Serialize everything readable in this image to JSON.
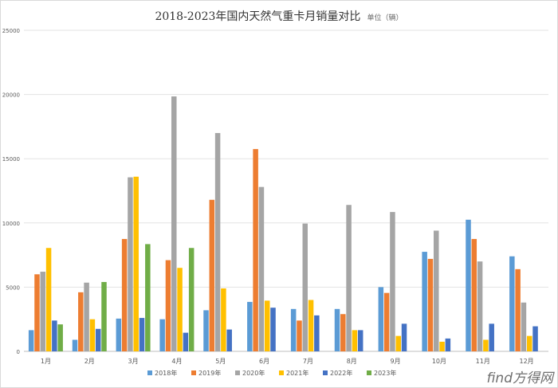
{
  "chart_data": {
    "type": "bar",
    "title": "2018-2023年国内天然气重卡月销量对比",
    "unit_note": "单位（辆）",
    "categories": [
      "1月",
      "2月",
      "3月",
      "4月",
      "5月",
      "6月",
      "7月",
      "8月",
      "9月",
      "10月",
      "11月",
      "12月"
    ],
    "series": [
      {
        "name": "2018年",
        "color": "#5b9bd5",
        "values": [
          1650,
          900,
          2550,
          2500,
          3200,
          3850,
          3300,
          3300,
          5000,
          7750,
          10250,
          7400
        ]
      },
      {
        "name": "2019年",
        "color": "#ed7d31",
        "values": [
          6000,
          4600,
          8750,
          7100,
          11800,
          15750,
          2400,
          2900,
          4550,
          7200,
          8750,
          6400
        ]
      },
      {
        "name": "2020年",
        "color": "#a5a5a5",
        "values": [
          6200,
          5350,
          13550,
          19850,
          17000,
          12800,
          9950,
          11400,
          10850,
          9400,
          7000,
          3800
        ]
      },
      {
        "name": "2021年",
        "color": "#ffc000",
        "values": [
          8050,
          2500,
          13600,
          6500,
          4900,
          3950,
          4000,
          1650,
          1200,
          750,
          900,
          1200
        ]
      },
      {
        "name": "2022年",
        "color": "#4472c4",
        "values": [
          2400,
          1750,
          2600,
          1450,
          1700,
          3400,
          2800,
          1650,
          2150,
          1000,
          2150,
          1950
        ]
      },
      {
        "name": "2023年",
        "color": "#70ad47",
        "values": [
          2100,
          5400,
          8350,
          8050,
          null,
          null,
          null,
          null,
          null,
          null,
          null,
          null
        ]
      }
    ],
    "ylim": [
      0,
      25000
    ],
    "yticks": [
      0,
      5000,
      10000,
      15000,
      20000,
      25000
    ],
    "grid": true,
    "legend_position": "bottom"
  },
  "watermark": "find方得网"
}
